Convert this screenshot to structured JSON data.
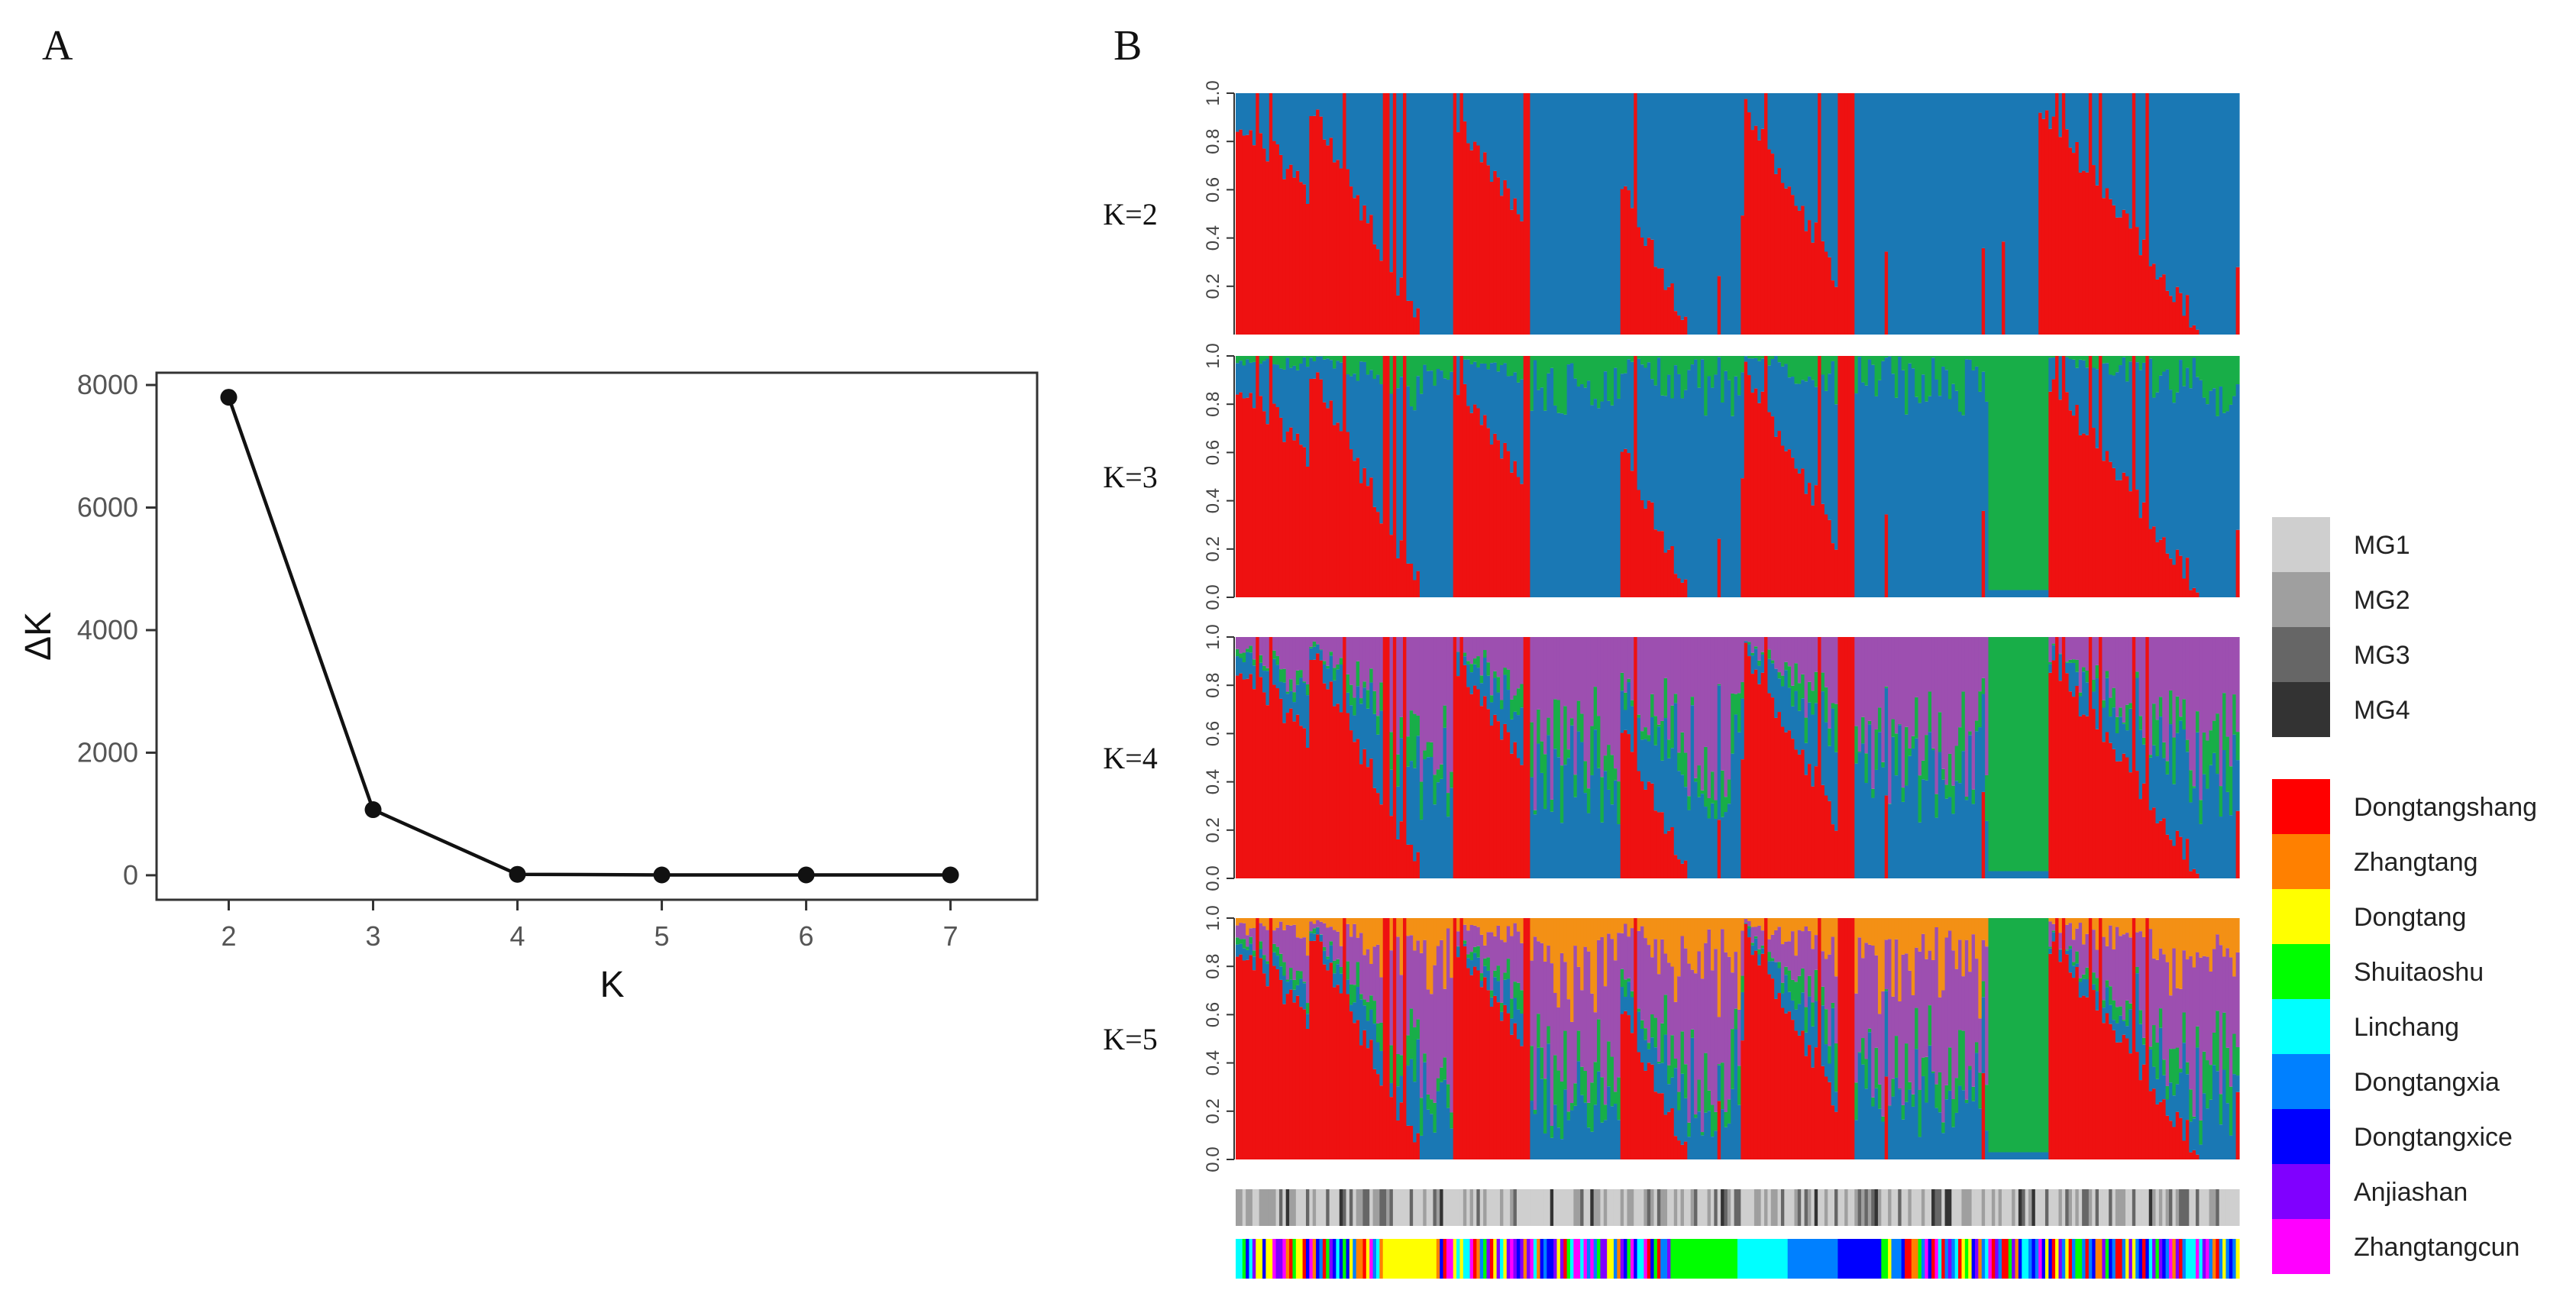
{
  "panels": {
    "a_label": "A",
    "b_label": "B"
  },
  "chart_data": [
    {
      "type": "line",
      "title": "",
      "xlabel": "K",
      "ylabel": "ΔK",
      "x": [
        2,
        3,
        4,
        5,
        6,
        7
      ],
      "values": [
        7800,
        1070,
        15,
        5,
        5,
        5
      ],
      "xlim": [
        1.5,
        7.6
      ],
      "ylim": [
        -400,
        8200
      ],
      "xticks": [
        "2",
        "3",
        "4",
        "5",
        "6",
        "7"
      ],
      "yticks": [
        "0",
        "2000",
        "4000",
        "6000",
        "8000"
      ],
      "grid": false
    },
    {
      "type": "bar",
      "subtype": "stacked-admixture",
      "title": "",
      "rows": [
        {
          "label": "K=2",
          "clusters": 2
        },
        {
          "label": "K=3",
          "clusters": 3
        },
        {
          "label": "K=4",
          "clusters": 4
        },
        {
          "label": "K=5",
          "clusters": 5
        }
      ],
      "ytick_labels": [
        "0.0",
        "0.2",
        "0.4",
        "0.6",
        "0.8",
        "1.0"
      ],
      "ylim": [
        0,
        1
      ],
      "cluster_colors": [
        "#ee1111",
        "#1a78b4",
        "#18ae48",
        "#9d4fb0",
        "#f39015"
      ],
      "individuals": 300,
      "legend_position": "right",
      "group_legend": [
        {
          "label": "MG1",
          "color": "#cfcfcf"
        },
        {
          "label": "MG2",
          "color": "#9f9f9f"
        },
        {
          "label": "MG3",
          "color": "#666666"
        },
        {
          "label": "MG4",
          "color": "#333333"
        }
      ],
      "population_legend": [
        {
          "label": "Dongtangshang",
          "color": "#ff0000"
        },
        {
          "label": "Zhangtang",
          "color": "#ff8000"
        },
        {
          "label": "Dongtang",
          "color": "#ffff00"
        },
        {
          "label": "Shuitaoshu",
          "color": "#00ff00"
        },
        {
          "label": "Linchang",
          "color": "#00ffff"
        },
        {
          "label": "Dongtangxia",
          "color": "#0080ff"
        },
        {
          "label": "Dongtangxice",
          "color": "#0000ff"
        },
        {
          "label": "Anjiashan",
          "color": "#8000ff"
        },
        {
          "label": "Zhangtangcun",
          "color": "#ff00ff"
        }
      ]
    }
  ]
}
